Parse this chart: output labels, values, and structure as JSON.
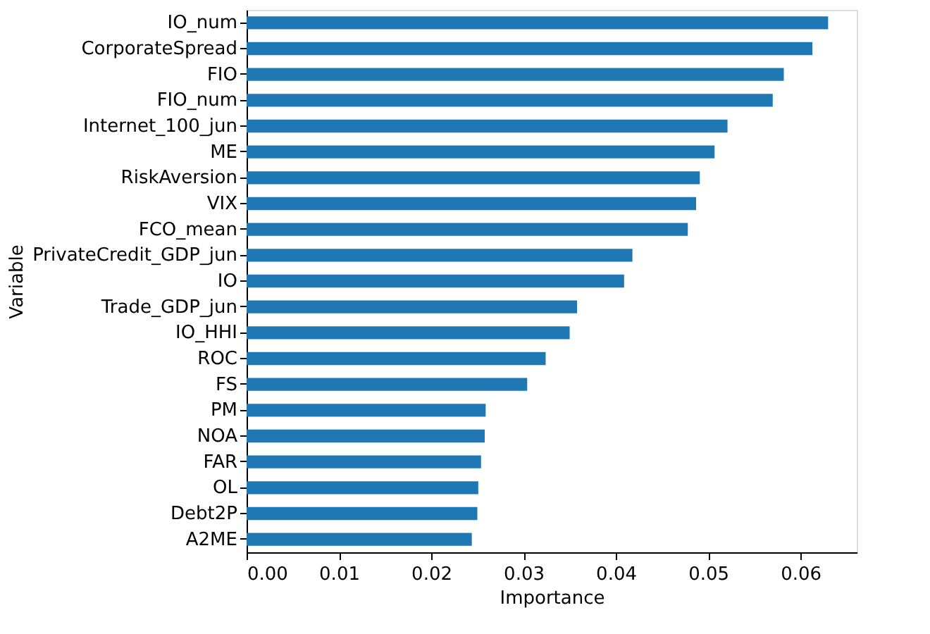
{
  "chart_data": {
    "type": "bar",
    "orientation": "horizontal",
    "xlabel": "Importance",
    "ylabel": "Variable",
    "categories": [
      "IO_num",
      "CorporateSpread",
      "FIO",
      "FIO_num",
      "Internet_100_jun",
      "ME",
      "RiskAversion",
      "VIX",
      "FCO_mean",
      "PrivateCredit_GDP_jun",
      "IO",
      "Trade_GDP_jun",
      "IO_HHI",
      "ROC",
      "FS",
      "PM",
      "NOA",
      "FAR",
      "OL",
      "Debt2P",
      "A2ME"
    ],
    "values": [
      0.063,
      0.0613,
      0.0582,
      0.057,
      0.0521,
      0.0507,
      0.0491,
      0.0487,
      0.0478,
      0.0418,
      0.0409,
      0.0358,
      0.035,
      0.0324,
      0.0304,
      0.0259,
      0.0258,
      0.0254,
      0.0251,
      0.025,
      0.0244
    ],
    "color": "#1f77b4",
    "xlim": [
      0,
      0.0661
    ],
    "xticks": [
      {
        "value": 0,
        "label": "0.00"
      },
      {
        "value": 0.01,
        "label": "0.01"
      },
      {
        "value": 0.02,
        "label": "0.02"
      },
      {
        "value": 0.03,
        "label": "0.03"
      },
      {
        "value": 0.04,
        "label": "0.04"
      },
      {
        "value": 0.05,
        "label": "0.05"
      },
      {
        "value": 0.06,
        "label": "0.06"
      }
    ],
    "grid": false
  }
}
